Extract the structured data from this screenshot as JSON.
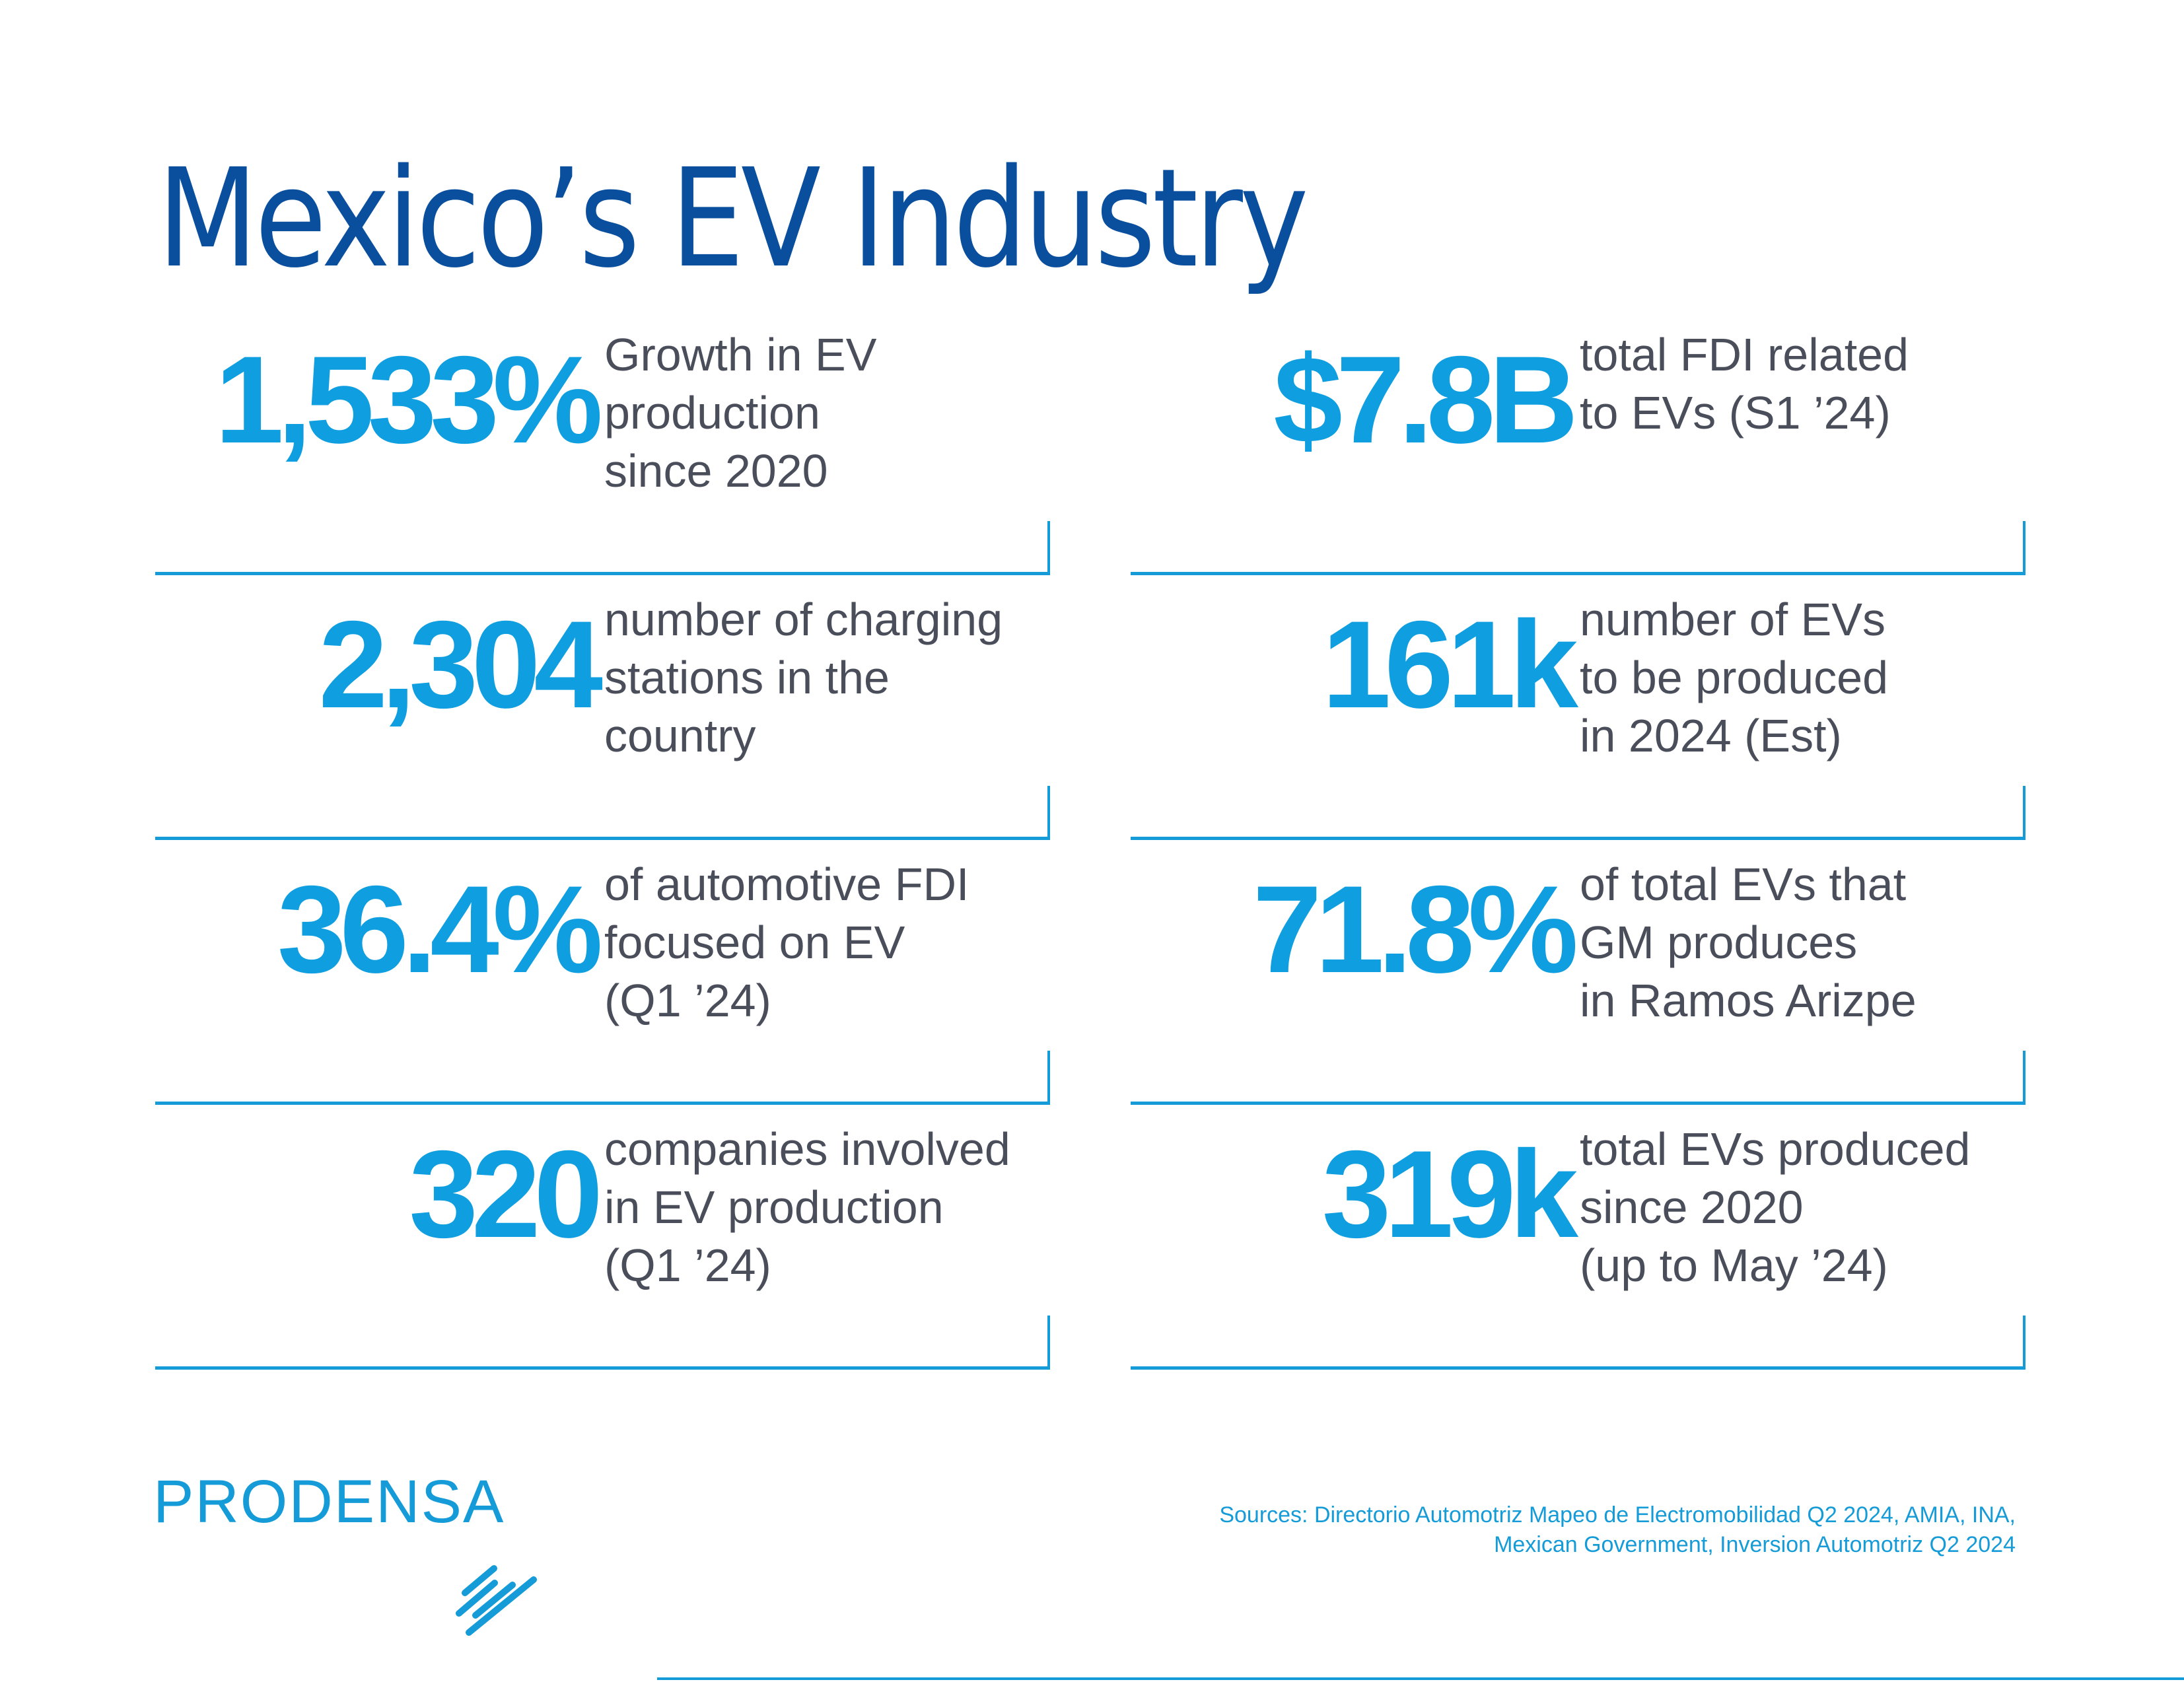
{
  "header": {
    "title": "Mexico’s EV Industry"
  },
  "stats": [
    {
      "value": "1,533%",
      "lines": [
        "Growth in EV",
        "production",
        "since 2020"
      ]
    },
    {
      "value": "$7.8B",
      "lines": [
        "total FDI related",
        "to EVs (S1 ’24)"
      ]
    },
    {
      "value": "2,304",
      "lines": [
        "number of charging",
        "stations in the",
        "country"
      ]
    },
    {
      "value": "161k",
      "lines": [
        "number of EVs",
        "to be produced",
        "in 2024 (Est)"
      ]
    },
    {
      "value": "36.4%",
      "lines": [
        "of automotive FDI",
        "focused on EV",
        "(Q1 ’24)"
      ]
    },
    {
      "value": "71.8%",
      "lines": [
        "of total EVs that",
        "GM produces",
        "in Ramos Arizpe"
      ]
    },
    {
      "value": "320",
      "lines": [
        "companies involved",
        "in EV production",
        "(Q1 ’24)"
      ]
    },
    {
      "value": "319k",
      "lines": [
        "total EVs produced",
        "since 2020",
        "(up to May ’24)"
      ]
    }
  ],
  "footer": {
    "logo": "PRODENSA",
    "sources_line1": "Sources: Directorio Automotriz Mapeo de Electromobilidad Q2 2024, AMIA, INA,",
    "sources_line2": "Mexican Government, Inversion Automotriz Q2 2024"
  },
  "colors": {
    "title": "#0a4f9e",
    "accent": "#0f9ee0",
    "text": "#4a4e5a",
    "rule": "#159bd7"
  }
}
